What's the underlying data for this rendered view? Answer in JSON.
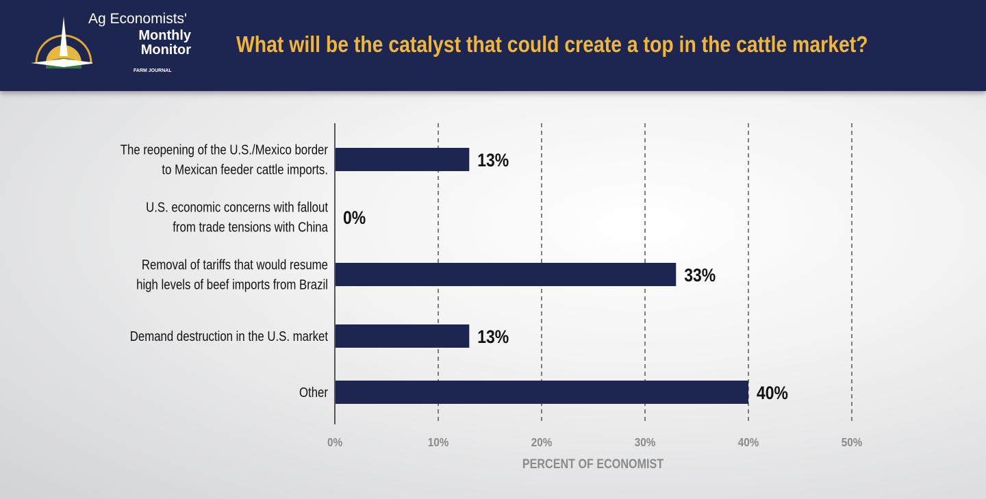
{
  "header": {
    "logo_line1": "Ag Economists'",
    "logo_line2": "Monthly",
    "logo_line3": "Monitor",
    "logo_publisher": "FARM JOURNAL",
    "title": "What will be the catalyst that could create a top in the cattle market?"
  },
  "colors": {
    "header_bg": "#1c2650",
    "title": "#f2b632",
    "bar": "#1c2650",
    "axis_text": "#8a8a8a"
  },
  "chart_data": {
    "type": "bar",
    "orientation": "horizontal",
    "title": "What will be the catalyst that could create a top in the cattle market?",
    "categories": [
      [
        "The reopening of the U.S./Mexico border",
        "to Mexican feeder cattle imports."
      ],
      [
        "U.S. economic concerns with fallout",
        "from trade tensions with China"
      ],
      [
        "Removal of tariffs that would resume",
        "high levels of beef imports from Brazil"
      ],
      [
        "Demand destruction in the U.S. market"
      ],
      [
        "Other"
      ]
    ],
    "values": [
      13,
      0,
      33,
      13,
      40
    ],
    "value_labels": [
      "13%",
      "0%",
      "33%",
      "13%",
      "40%"
    ],
    "xlabel": "PERCENT OF ECONOMIST",
    "xlim": [
      0,
      50
    ],
    "xticks": [
      0,
      10,
      20,
      30,
      40,
      50
    ],
    "xtick_labels": [
      "0%",
      "10%",
      "20%",
      "30%",
      "40%",
      "50%"
    ],
    "grid": "vertical dashed"
  }
}
